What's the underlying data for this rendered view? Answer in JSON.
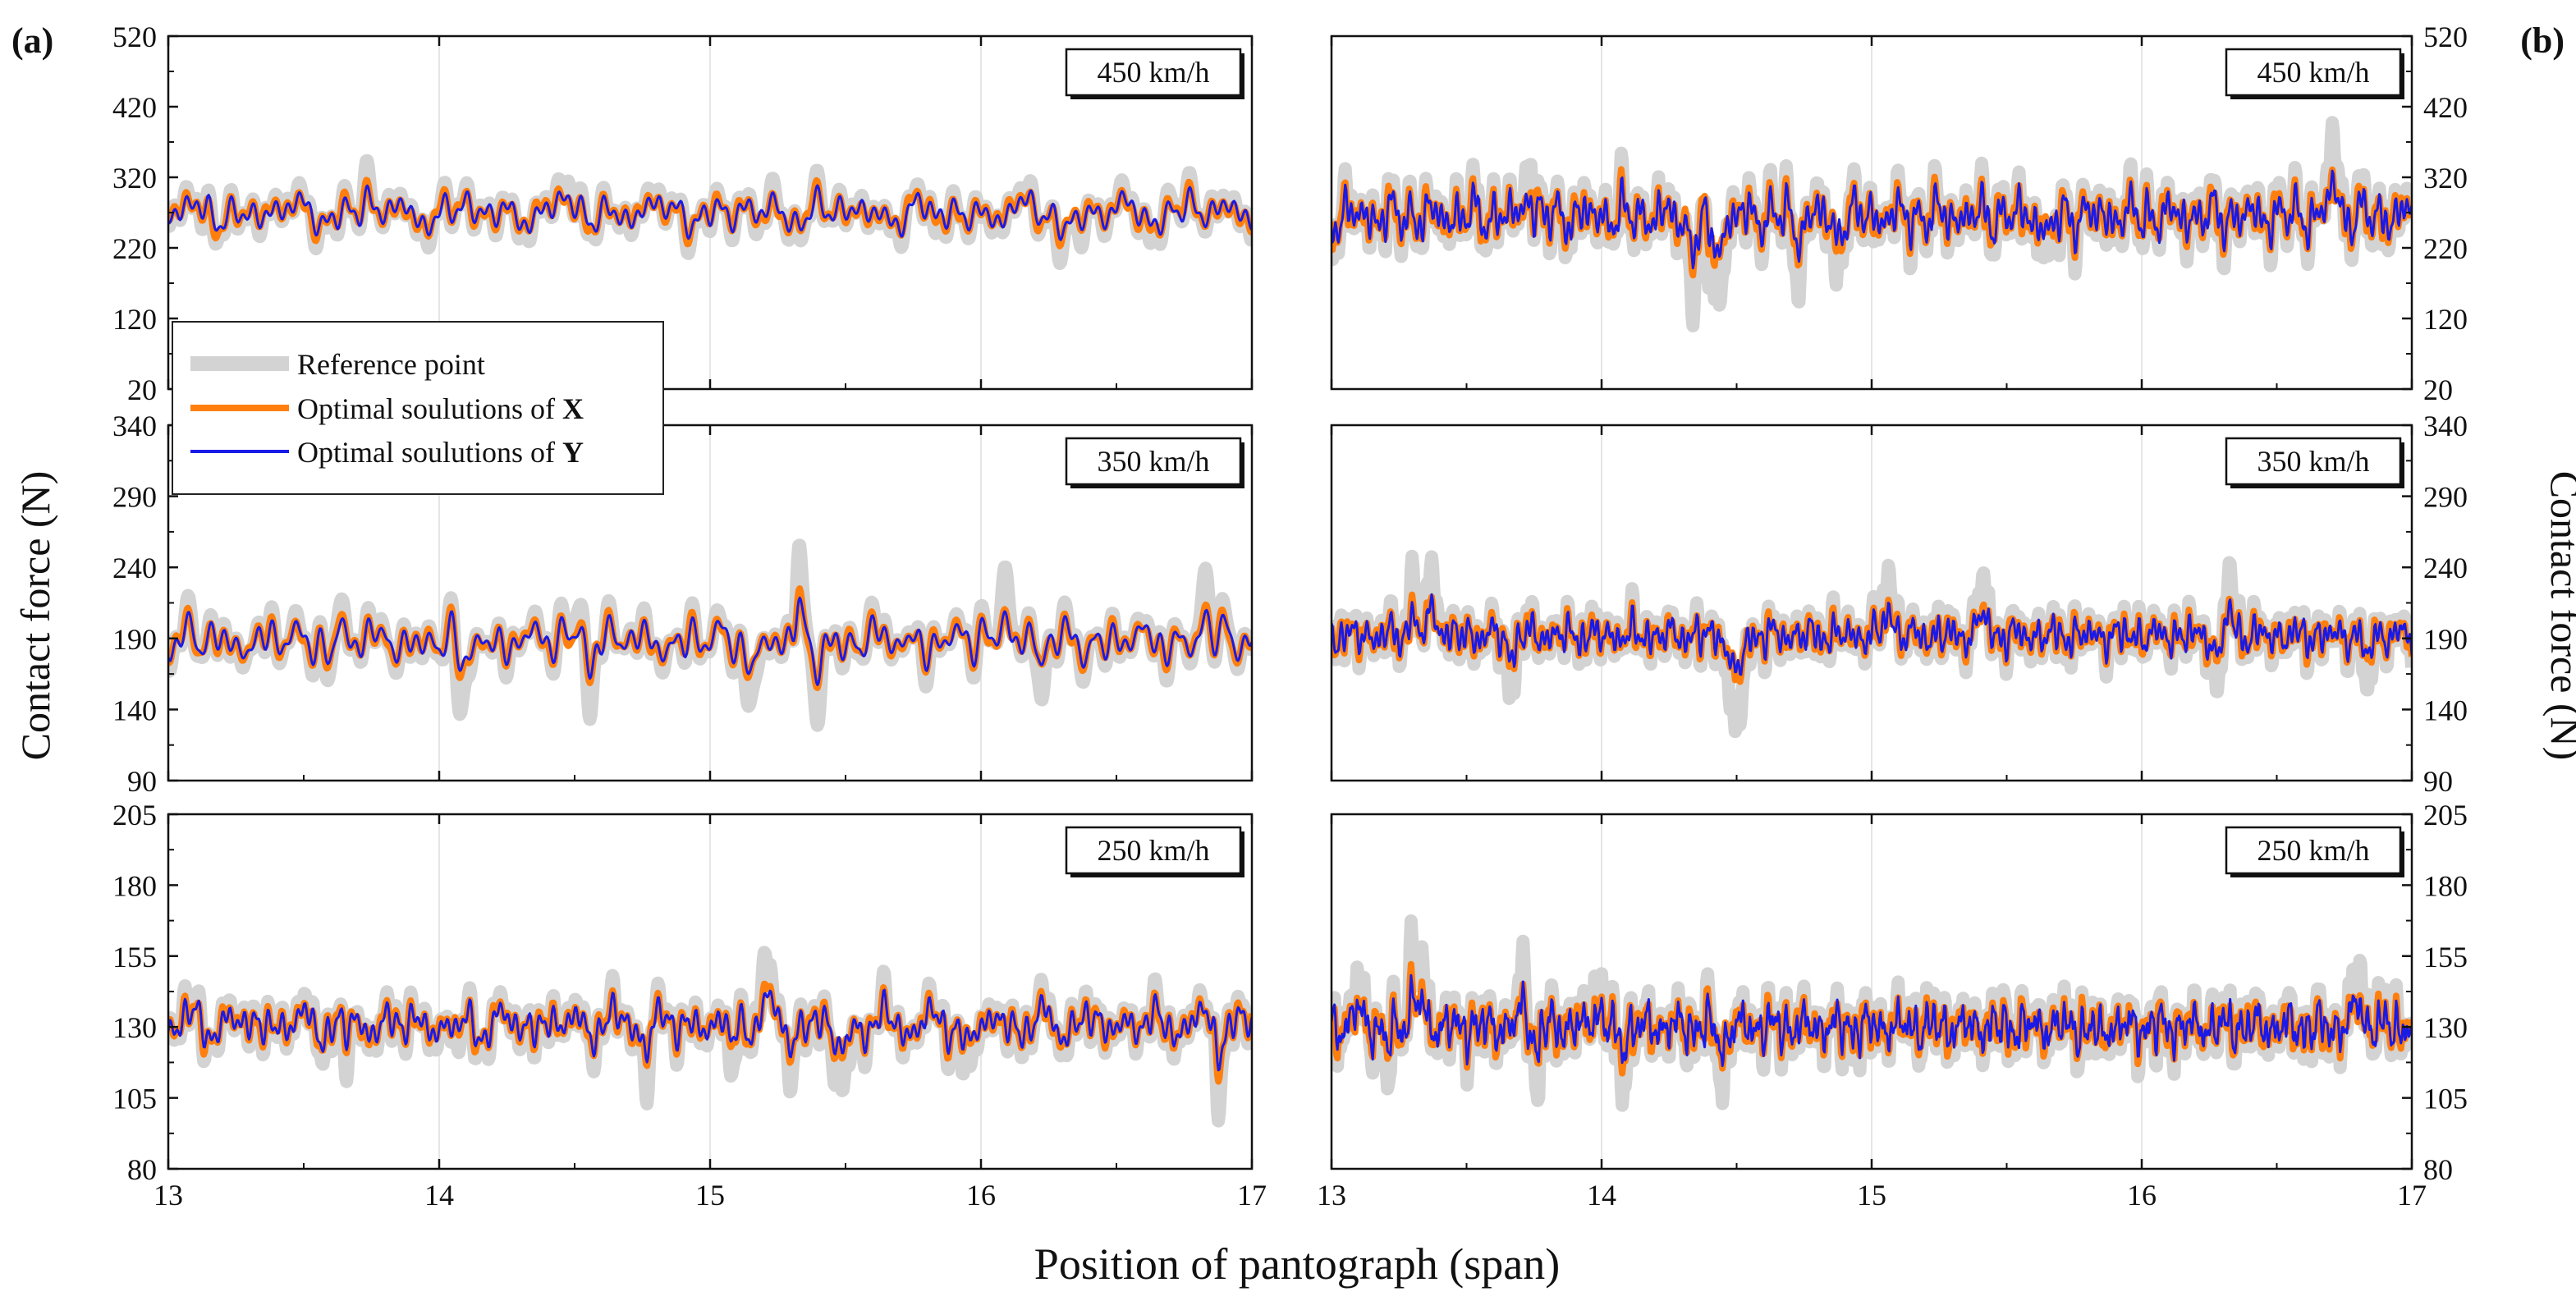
{
  "figure": {
    "panel_a_label": "(a)",
    "panel_b_label": "(b)",
    "xlabel": "Position of pantograph (span)",
    "ylabel": "Contact force (N)",
    "legend": {
      "items": [
        {
          "label": "Reference point",
          "color": "#d3d3d3"
        },
        {
          "label_prefix": "Optimal soulutions of ",
          "label_var": "X",
          "color": "#ff7f0e"
        },
        {
          "label_prefix": "Optimal soulutions of ",
          "label_var": "Y",
          "color": "#1a1ae6"
        }
      ]
    }
  },
  "chart_data": [
    {
      "type": "line",
      "panel": "a",
      "row": 0,
      "speed_label": "450 km/h",
      "xlim": [
        13,
        17
      ],
      "xticks": [
        13,
        14,
        15,
        16,
        17
      ],
      "xticklabels": [],
      "ylim": [
        20,
        520
      ],
      "yticks": [
        20,
        120,
        220,
        320,
        420,
        520
      ],
      "ytick_side": "left",
      "gen": {
        "mean": 270,
        "amp": 45,
        "seed": 3,
        "ndip": 10,
        "dip": 40,
        "fsc": 1.0
      }
    },
    {
      "type": "line",
      "panel": "a",
      "row": 1,
      "speed_label": "350 km/h",
      "xlim": [
        13,
        17
      ],
      "xticks": [
        13,
        14,
        15,
        16,
        17
      ],
      "xticklabels": [],
      "ylim": [
        90,
        340
      ],
      "yticks": [
        90,
        140,
        190,
        240,
        290,
        340
      ],
      "ytick_side": "left",
      "gen": {
        "mean": 188,
        "amp": 25,
        "seed": 7,
        "ndip": 12,
        "dip": 55,
        "fsc": 1.15
      }
    },
    {
      "type": "line",
      "panel": "a",
      "row": 2,
      "speed_label": "250 km/h",
      "xlim": [
        13,
        17
      ],
      "xticks": [
        13,
        14,
        15,
        16,
        17
      ],
      "xticklabels": [
        "13",
        "14",
        "15",
        "16",
        "17"
      ],
      "ylim": [
        80,
        205
      ],
      "yticks": [
        80,
        105,
        130,
        155,
        180,
        205
      ],
      "ytick_side": "left",
      "gen": {
        "mean": 131,
        "amp": 13,
        "seed": 11,
        "ndip": 10,
        "dip": 22,
        "fsc": 1.45
      }
    },
    {
      "type": "line",
      "panel": "b",
      "row": 0,
      "speed_label": "450 km/h",
      "xlim": [
        13,
        17
      ],
      "xticks": [
        13,
        14,
        15,
        16,
        17
      ],
      "xticklabels": [],
      "ylim": [
        20,
        520
      ],
      "yticks": [
        20,
        120,
        220,
        320,
        420,
        520
      ],
      "ytick_side": "right",
      "gen": {
        "mean": 265,
        "amp": 60,
        "seed": 19,
        "ndip": 8,
        "dip": 130,
        "fsc": 2.2
      }
    },
    {
      "type": "line",
      "panel": "b",
      "row": 1,
      "speed_label": "350 km/h",
      "xlim": [
        13,
        17
      ],
      "xticks": [
        13,
        14,
        15,
        16,
        17
      ],
      "xticklabels": [],
      "ylim": [
        90,
        340
      ],
      "yticks": [
        90,
        140,
        190,
        240,
        290,
        340
      ],
      "ytick_side": "right",
      "gen": {
        "mean": 192,
        "amp": 22,
        "seed": 23,
        "ndip": 10,
        "dip": 50,
        "fsc": 2.6
      }
    },
    {
      "type": "line",
      "panel": "b",
      "row": 2,
      "speed_label": "250 km/h",
      "xlim": [
        13,
        17
      ],
      "xticks": [
        13,
        14,
        15,
        16,
        17
      ],
      "xticklabels": [
        "13",
        "14",
        "15",
        "16",
        "17"
      ],
      "ylim": [
        80,
        205
      ],
      "yticks": [
        80,
        105,
        130,
        155,
        180,
        205
      ],
      "ytick_side": "right",
      "gen": {
        "mean": 130,
        "amp": 14,
        "seed": 29,
        "ndip": 12,
        "dip": 24,
        "fsc": 3.1
      }
    }
  ]
}
